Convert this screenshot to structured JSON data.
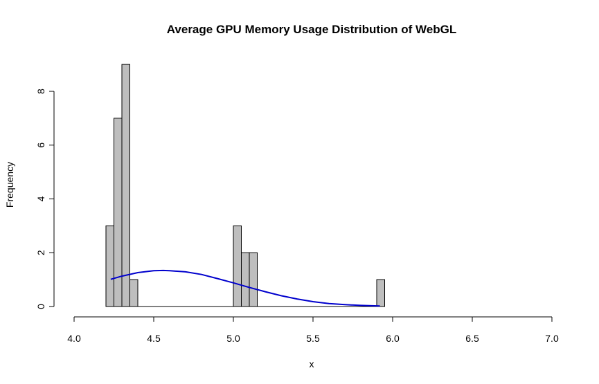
{
  "chart_data": {
    "type": "bar",
    "title": "Average GPU Memory Usage Distribution of WebGL",
    "xlabel": "x",
    "ylabel": "Frequency",
    "xlim": [
      4.0,
      7.0
    ],
    "ylim": [
      0,
      9
    ],
    "x_ticks": [
      4.0,
      4.5,
      5.0,
      5.5,
      6.0,
      6.5,
      7.0
    ],
    "x_tick_labels": [
      "4.0",
      "4.5",
      "5.0",
      "5.5",
      "6.0",
      "6.5",
      "7.0"
    ],
    "y_ticks": [
      0,
      2,
      4,
      6,
      8
    ],
    "y_tick_labels": [
      "0",
      "2",
      "4",
      "6",
      "8"
    ],
    "grid": false,
    "legend": "none",
    "bar_fill": "#bebebe",
    "bar_stroke": "#000000",
    "curve_color": "#0000cd",
    "bins": [
      {
        "start": 4.2,
        "end": 4.25,
        "count": 3
      },
      {
        "start": 4.25,
        "end": 4.3,
        "count": 7
      },
      {
        "start": 4.3,
        "end": 4.35,
        "count": 9
      },
      {
        "start": 4.35,
        "end": 4.4,
        "count": 1
      },
      {
        "start": 5.0,
        "end": 5.05,
        "count": 3
      },
      {
        "start": 5.05,
        "end": 5.1,
        "count": 2
      },
      {
        "start": 5.1,
        "end": 5.15,
        "count": 2
      },
      {
        "start": 5.9,
        "end": 5.95,
        "count": 1
      }
    ],
    "curve": {
      "x": [
        4.23,
        4.3,
        4.4,
        4.5,
        4.56,
        4.6,
        4.7,
        4.8,
        4.9,
        5.0,
        5.1,
        5.2,
        5.3,
        5.4,
        5.5,
        5.6,
        5.7,
        5.8,
        5.92
      ],
      "y": [
        1.01,
        1.13,
        1.26,
        1.33,
        1.34,
        1.33,
        1.29,
        1.19,
        1.04,
        0.88,
        0.71,
        0.55,
        0.4,
        0.28,
        0.18,
        0.11,
        0.07,
        0.04,
        0.02
      ]
    }
  }
}
